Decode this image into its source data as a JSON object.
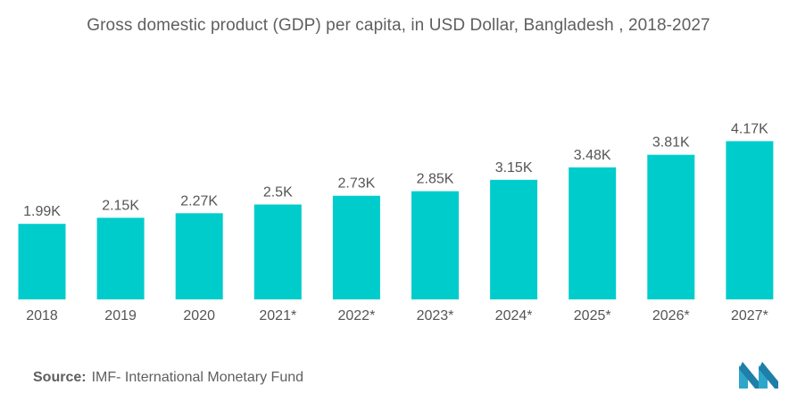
{
  "colors": {
    "bar": "#00CCCC",
    "text": "#555555",
    "logo": "#2EA6C9"
  },
  "chart_data": {
    "type": "bar",
    "title": "Gross domestic product (GDP) per capita, in USD Dollar, Bangladesh , 2018-2027",
    "categories": [
      "2018",
      "2019",
      "2020",
      "2021*",
      "2022*",
      "2023*",
      "2024*",
      "2025*",
      "2026*",
      "2027*"
    ],
    "values": [
      1990,
      2150,
      2270,
      2500,
      2730,
      2850,
      3150,
      3480,
      3810,
      4170
    ],
    "data_labels": [
      "1.99K",
      "2.15K",
      "2.27K",
      "2.5K",
      "2.73K",
      "2.85K",
      "3.15K",
      "3.48K",
      "3.81K",
      "4.17K"
    ],
    "xlabel": "",
    "ylabel": "",
    "grid": false,
    "legend": "none"
  },
  "source": {
    "label": "Source:",
    "text": "IMF- International Monetary Fund"
  },
  "logo": {
    "icon": "mordor-logo-icon"
  }
}
